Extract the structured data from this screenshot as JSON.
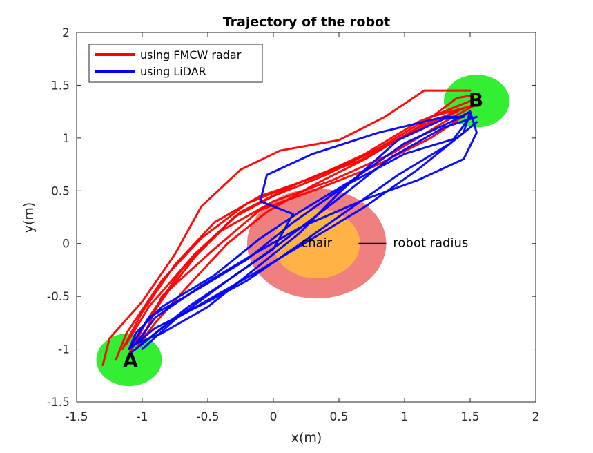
{
  "chart_data": {
    "type": "line",
    "title": "Trajectory of the robot",
    "xlabel": "x(m)",
    "ylabel": "y(m)",
    "xlim": [
      -1.5,
      2
    ],
    "ylim": [
      -1.5,
      2
    ],
    "xticks": [
      -1.5,
      -1,
      -0.5,
      0,
      0.5,
      1,
      1.5,
      2
    ],
    "yticks": [
      -1.5,
      -1,
      -0.5,
      0,
      0.5,
      1,
      1.5,
      2
    ],
    "xtick_labels": [
      "-1.5",
      "-1",
      "-0.5",
      "0",
      "0.5",
      "1",
      "1.5",
      "2"
    ],
    "ytick_labels": [
      "-1.5",
      "-1",
      "-0.5",
      "0",
      "0.5",
      "1",
      "1.5",
      "2"
    ],
    "grid": false,
    "legend_position": "top-left",
    "regions": [
      {
        "label": "A",
        "center": [
          -1.1,
          -1.1
        ],
        "radius_x": 0.25,
        "radius_y": 0.25,
        "color": "#33ee33"
      },
      {
        "label": "B",
        "center": [
          1.55,
          1.35
        ],
        "radius_x": 0.25,
        "radius_y": 0.25,
        "color": "#33ee33"
      }
    ],
    "obstacle": {
      "label": "chair",
      "annotation": "robot radius",
      "center": [
        0.33,
        0.0
      ],
      "inner_radius_x": 0.33,
      "inner_radius_y": 0.33,
      "outer_radius_x": 0.53,
      "outer_radius_y": 0.52,
      "inner_color": "#ffb347",
      "outer_color": "#f08080"
    },
    "series": [
      {
        "name": "using FMCW radar",
        "color": "#ff0000",
        "paths": [
          [
            [
              -1.1,
              -1.05
            ],
            [
              -1.0,
              -0.8
            ],
            [
              -0.8,
              -0.45
            ],
            [
              -0.55,
              -0.05
            ],
            [
              -0.3,
              0.25
            ],
            [
              0.0,
              0.45
            ],
            [
              0.4,
              0.65
            ],
            [
              0.8,
              0.9
            ],
            [
              1.2,
              1.2
            ],
            [
              1.5,
              1.3
            ]
          ],
          [
            [
              -1.05,
              -1.0
            ],
            [
              -0.9,
              -0.75
            ],
            [
              -0.65,
              -0.4
            ],
            [
              -0.35,
              0.0
            ],
            [
              -0.05,
              0.3
            ],
            [
              0.3,
              0.55
            ],
            [
              0.7,
              0.8
            ],
            [
              1.1,
              1.1
            ],
            [
              1.45,
              1.28
            ]
          ],
          [
            [
              -1.15,
              -1.0
            ],
            [
              -1.0,
              -0.65
            ],
            [
              -0.75,
              -0.2
            ],
            [
              -0.45,
              0.2
            ],
            [
              -0.1,
              0.45
            ],
            [
              0.3,
              0.62
            ],
            [
              0.7,
              0.85
            ],
            [
              1.1,
              1.15
            ],
            [
              1.5,
              1.35
            ]
          ],
          [
            [
              -1.3,
              -1.15
            ],
            [
              -1.25,
              -0.9
            ],
            [
              -1.0,
              -0.55
            ],
            [
              -0.75,
              -0.1
            ],
            [
              -0.55,
              0.35
            ],
            [
              -0.25,
              0.7
            ],
            [
              0.05,
              0.88
            ],
            [
              0.5,
              0.98
            ],
            [
              0.85,
              1.2
            ],
            [
              1.15,
              1.45
            ],
            [
              1.5,
              1.45
            ]
          ],
          [
            [
              -1.12,
              -0.95
            ],
            [
              -0.95,
              -0.6
            ],
            [
              -0.6,
              -0.1
            ],
            [
              -0.25,
              0.3
            ],
            [
              0.2,
              0.58
            ],
            [
              0.6,
              0.78
            ],
            [
              1.0,
              1.02
            ],
            [
              1.4,
              1.25
            ]
          ],
          [
            [
              -1.0,
              -0.9
            ],
            [
              -0.85,
              -0.5
            ],
            [
              -0.45,
              -0.05
            ],
            [
              -0.1,
              0.32
            ],
            [
              0.3,
              0.5
            ],
            [
              0.75,
              0.72
            ],
            [
              1.2,
              1.0
            ],
            [
              1.5,
              1.25
            ]
          ],
          [
            [
              -1.08,
              -1.0
            ],
            [
              -0.95,
              -0.7
            ],
            [
              -0.7,
              -0.25
            ],
            [
              -0.4,
              0.12
            ],
            [
              0.0,
              0.4
            ],
            [
              0.45,
              0.6
            ],
            [
              0.9,
              0.85
            ],
            [
              1.3,
              1.15
            ],
            [
              1.55,
              1.32
            ]
          ],
          [
            [
              -1.2,
              -1.1
            ],
            [
              -1.12,
              -0.85
            ],
            [
              -0.85,
              -0.35
            ],
            [
              -0.55,
              0.05
            ],
            [
              -0.2,
              0.38
            ],
            [
              0.2,
              0.58
            ],
            [
              0.65,
              0.78
            ],
            [
              1.05,
              1.05
            ],
            [
              1.4,
              1.38
            ],
            [
              1.5,
              1.4
            ]
          ]
        ]
      },
      {
        "name": "using LiDAR",
        "color": "#0000ff",
        "paths": [
          [
            [
              -1.05,
              -1.0
            ],
            [
              -0.8,
              -0.75
            ],
            [
              -0.45,
              -0.5
            ],
            [
              -0.1,
              -0.25
            ],
            [
              0.3,
              0.05
            ],
            [
              0.7,
              0.35
            ],
            [
              1.1,
              0.7
            ],
            [
              1.45,
              1.05
            ],
            [
              1.5,
              1.25
            ]
          ],
          [
            [
              -1.1,
              -1.0
            ],
            [
              -0.9,
              -0.8
            ],
            [
              -0.5,
              -0.55
            ],
            [
              -0.2,
              -0.35
            ],
            [
              0.15,
              -0.05
            ],
            [
              0.55,
              0.3
            ],
            [
              0.95,
              0.65
            ],
            [
              1.35,
              0.95
            ],
            [
              1.5,
              1.2
            ]
          ],
          [
            [
              -1.1,
              -1.0
            ],
            [
              -1.05,
              -0.85
            ],
            [
              -0.85,
              -0.6
            ],
            [
              -0.45,
              -0.3
            ],
            [
              -0.1,
              0.05
            ],
            [
              0.2,
              0.3
            ],
            [
              0.6,
              0.6
            ],
            [
              1.0,
              0.95
            ],
            [
              1.35,
              1.15
            ],
            [
              1.5,
              1.25
            ]
          ],
          [
            [
              -1.1,
              -1.05
            ],
            [
              -0.95,
              -0.9
            ],
            [
              -0.65,
              -0.6
            ],
            [
              -0.35,
              -0.35
            ],
            [
              0.05,
              0.0
            ],
            [
              0.45,
              0.38
            ],
            [
              0.9,
              0.82
            ],
            [
              1.3,
              1.1
            ],
            [
              1.55,
              1.2
            ]
          ],
          [
            [
              -1.05,
              -0.95
            ],
            [
              -0.85,
              -0.85
            ],
            [
              -0.5,
              -0.6
            ],
            [
              -0.1,
              -0.2
            ],
            [
              0.2,
              0.1
            ],
            [
              0.5,
              0.48
            ],
            [
              0.95,
              0.98
            ],
            [
              1.3,
              1.18
            ],
            [
              1.45,
              1.2
            ]
          ],
          [
            [
              -1.1,
              -1.0
            ],
            [
              -0.95,
              -0.7
            ],
            [
              -0.6,
              -0.45
            ],
            [
              -0.2,
              -0.15
            ],
            [
              0.15,
              0.2
            ],
            [
              0.55,
              0.55
            ],
            [
              1.0,
              0.85
            ],
            [
              1.4,
              1.0
            ],
            [
              1.55,
              1.15
            ]
          ],
          [
            [
              -1.0,
              -1.0
            ],
            [
              -0.75,
              -0.72
            ],
            [
              -0.35,
              -0.35
            ],
            [
              0.0,
              -0.05
            ],
            [
              0.15,
              0.28
            ],
            [
              -0.1,
              0.4
            ],
            [
              -0.05,
              0.65
            ],
            [
              0.3,
              0.85
            ],
            [
              0.8,
              1.05
            ],
            [
              1.3,
              1.2
            ],
            [
              1.45,
              1.2
            ]
          ],
          [
            [
              -1.05,
              -0.95
            ],
            [
              -0.9,
              -0.7
            ],
            [
              -0.55,
              -0.4
            ],
            [
              -0.15,
              -0.1
            ],
            [
              0.2,
              0.15
            ],
            [
              0.7,
              0.42
            ],
            [
              1.1,
              0.6
            ],
            [
              1.45,
              0.8
            ],
            [
              1.55,
              1.05
            ],
            [
              1.5,
              1.25
            ]
          ]
        ]
      }
    ]
  }
}
